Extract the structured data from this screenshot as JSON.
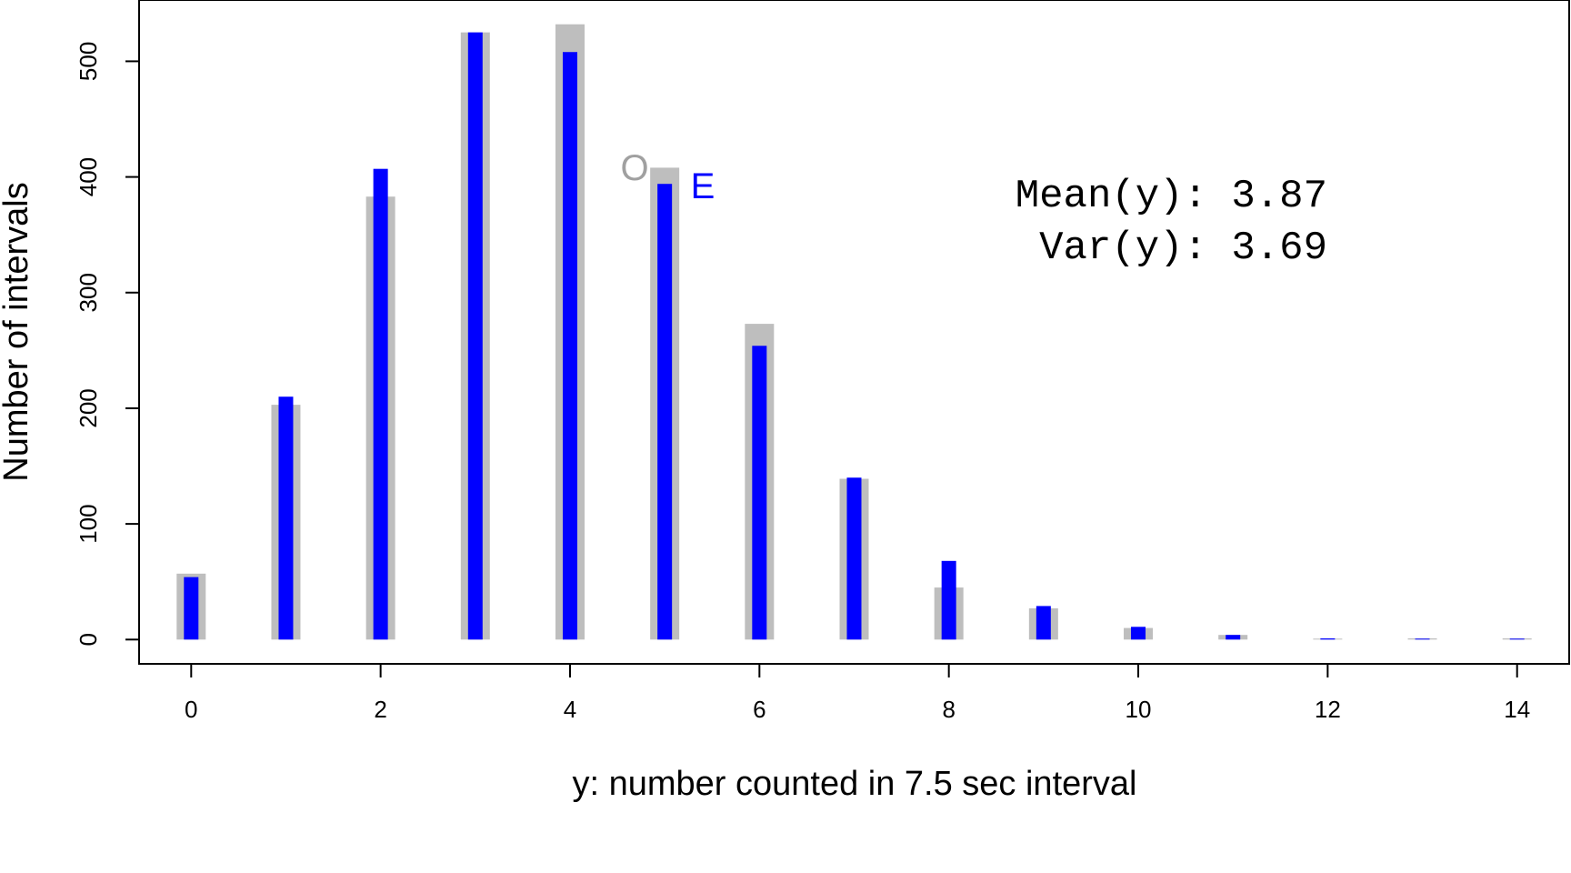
{
  "chart_data": {
    "type": "bar",
    "x": [
      0,
      1,
      2,
      3,
      4,
      5,
      6,
      7,
      8,
      9,
      10,
      11,
      12,
      13,
      14
    ],
    "series": [
      {
        "name": "O",
        "color": "#bebebe",
        "values": [
          57,
          203,
          383,
          525,
          532,
          408,
          273,
          139,
          45,
          27,
          10,
          4,
          0,
          1,
          1
        ]
      },
      {
        "name": "E",
        "color": "#0000ff",
        "values": [
          54,
          210,
          407,
          525,
          508,
          394,
          254,
          140,
          68,
          29,
          11,
          4,
          1,
          0.3,
          0.1
        ]
      }
    ],
    "xlabel": "y: number counted in 7.5 sec interval",
    "ylabel": "Number of intervals",
    "xticks": [
      "0",
      "2",
      "4",
      "6",
      "8",
      "10",
      "12",
      "14"
    ],
    "yticks": [
      "0",
      "100",
      "200",
      "300",
      "400",
      "500"
    ],
    "xlim": [
      -0.55,
      14.55
    ],
    "ylim": [
      -21,
      553
    ],
    "annotations": {
      "mean_line": "Mean(y): 3.87",
      "var_line": "Var(y): 3.69"
    },
    "legend_placement": "top-center"
  }
}
